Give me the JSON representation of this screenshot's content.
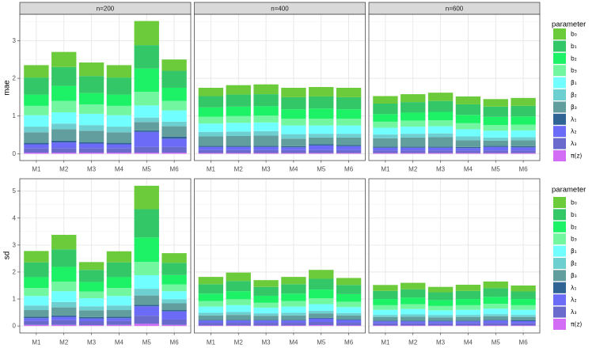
{
  "chart_data": [
    {
      "type": "bar",
      "stacked": true,
      "ylabel": "mae",
      "ylim": [
        -0.18,
        3.7
      ],
      "yticks": [
        0,
        1,
        2,
        3
      ],
      "categories": [
        "M1",
        "M2",
        "M3",
        "M4",
        "M5",
        "M6"
      ],
      "legend": {
        "title": "parameter",
        "position": "right",
        "items": [
          {
            "label": "b₀",
            "color": "#6CCB3A"
          },
          {
            "label": "b₁",
            "color": "#33C768"
          },
          {
            "label": "b₂",
            "color": "#1DF266"
          },
          {
            "label": "b₃",
            "color": "#72F7A0"
          },
          {
            "label": "β₁",
            "color": "#70FEFE"
          },
          {
            "label": "β₂",
            "color": "#6DCFCF"
          },
          {
            "label": "β₃",
            "color": "#639E9E"
          },
          {
            "label": "λ₁",
            "color": "#2F6495"
          },
          {
            "label": "λ₂",
            "color": "#6B6BF7"
          },
          {
            "label": "λ₃",
            "color": "#6A6ACC"
          },
          {
            "label": "π(z)",
            "color": "#D46DF5"
          }
        ]
      },
      "facets": [
        {
          "label": "n=200",
          "values": [
            [
              0.33,
              0.4,
              0.36,
              0.33,
              0.64,
              0.3
            ],
            [
              0.45,
              0.5,
              0.45,
              0.45,
              0.62,
              0.45
            ],
            [
              0.3,
              0.4,
              0.3,
              0.3,
              0.62,
              0.35
            ],
            [
              0.25,
              0.3,
              0.25,
              0.25,
              0.36,
              0.25
            ],
            [
              0.3,
              0.3,
              0.3,
              0.3,
              0.32,
              0.3
            ],
            [
              0.15,
              0.15,
              0.15,
              0.15,
              0.12,
              0.12
            ],
            [
              0.28,
              0.3,
              0.3,
              0.28,
              0.22,
              0.28
            ],
            [
              0.04,
              0.05,
              0.04,
              0.04,
              0.04,
              0.05
            ],
            [
              0.1,
              0.15,
              0.12,
              0.1,
              0.4,
              0.22
            ],
            [
              0.12,
              0.12,
              0.12,
              0.12,
              0.15,
              0.15
            ],
            [
              0.03,
              0.03,
              0.03,
              0.03,
              0.03,
              0.03
            ]
          ]
        },
        {
          "label": "n=400",
          "values": [
            [
              0.22,
              0.25,
              0.26,
              0.25,
              0.25,
              0.25
            ],
            [
              0.3,
              0.32,
              0.32,
              0.32,
              0.32,
              0.32
            ],
            [
              0.25,
              0.25,
              0.25,
              0.25,
              0.27,
              0.25
            ],
            [
              0.18,
              0.18,
              0.18,
              0.18,
              0.18,
              0.18
            ],
            [
              0.22,
              0.23,
              0.23,
              0.23,
              0.22,
              0.22
            ],
            [
              0.12,
              0.12,
              0.12,
              0.12,
              0.1,
              0.1
            ],
            [
              0.25,
              0.26,
              0.27,
              0.2,
              0.18,
              0.2
            ],
            [
              0.03,
              0.03,
              0.03,
              0.03,
              0.03,
              0.03
            ],
            [
              0.08,
              0.08,
              0.08,
              0.07,
              0.12,
              0.1
            ],
            [
              0.08,
              0.08,
              0.08,
              0.08,
              0.08,
              0.08
            ],
            [
              0.02,
              0.02,
              0.02,
              0.02,
              0.02,
              0.02
            ]
          ]
        },
        {
          "label": "n=600",
          "values": [
            [
              0.2,
              0.21,
              0.22,
              0.21,
              0.2,
              0.21
            ],
            [
              0.28,
              0.28,
              0.29,
              0.28,
              0.27,
              0.28
            ],
            [
              0.2,
              0.21,
              0.22,
              0.22,
              0.22,
              0.22
            ],
            [
              0.16,
              0.16,
              0.16,
              0.16,
              0.15,
              0.15
            ],
            [
              0.18,
              0.19,
              0.19,
              0.19,
              0.18,
              0.18
            ],
            [
              0.1,
              0.1,
              0.1,
              0.1,
              0.08,
              0.08
            ],
            [
              0.22,
              0.24,
              0.25,
              0.18,
              0.14,
              0.16
            ],
            [
              0.03,
              0.03,
              0.03,
              0.03,
              0.03,
              0.03
            ],
            [
              0.07,
              0.07,
              0.07,
              0.06,
              0.09,
              0.08
            ],
            [
              0.07,
              0.07,
              0.07,
              0.07,
              0.07,
              0.07
            ],
            [
              0.02,
              0.02,
              0.02,
              0.02,
              0.02,
              0.02
            ]
          ]
        }
      ]
    },
    {
      "type": "bar",
      "stacked": true,
      "ylabel": "sd",
      "ylim": [
        -0.26,
        5.46
      ],
      "yticks": [
        0,
        1,
        2,
        3,
        4,
        5
      ],
      "categories": [
        "M1",
        "M2",
        "M3",
        "M4",
        "M5",
        "M6"
      ],
      "legend": {
        "title": "parameter",
        "position": "right",
        "items": [
          {
            "label": "b₀",
            "color": "#6CCB3A"
          },
          {
            "label": "b₁",
            "color": "#33C768"
          },
          {
            "label": "b₂",
            "color": "#1DF266"
          },
          {
            "label": "b₃",
            "color": "#72F7A0"
          },
          {
            "label": "β₁",
            "color": "#70FEFE"
          },
          {
            "label": "β₂",
            "color": "#6DCFCF"
          },
          {
            "label": "β₃",
            "color": "#639E9E"
          },
          {
            "label": "λ₁",
            "color": "#2F6495"
          },
          {
            "label": "λ₂",
            "color": "#6B6BF7"
          },
          {
            "label": "λ₃",
            "color": "#6A6ACC"
          },
          {
            "label": "π(z)",
            "color": "#D46DF5"
          }
        ]
      },
      "facets": [
        {
          "values": [
            [
              0.42,
              0.54,
              0.29,
              0.41,
              0.87,
              0.36
            ],
            [
              0.55,
              0.65,
              0.45,
              0.55,
              1.05,
              0.45
            ],
            [
              0.4,
              0.55,
              0.35,
              0.4,
              0.9,
              0.35
            ],
            [
              0.3,
              0.35,
              0.25,
              0.3,
              0.5,
              0.25
            ],
            [
              0.35,
              0.4,
              0.3,
              0.35,
              0.5,
              0.3
            ],
            [
              0.17,
              0.2,
              0.15,
              0.17,
              0.25,
              0.15
            ],
            [
              0.25,
              0.3,
              0.25,
              0.25,
              0.35,
              0.25
            ],
            [
              0.05,
              0.05,
              0.05,
              0.05,
              0.05,
              0.05
            ],
            [
              0.1,
              0.12,
              0.1,
              0.1,
              0.35,
              0.3
            ],
            [
              0.15,
              0.18,
              0.15,
              0.15,
              0.3,
              0.2
            ],
            [
              0.04,
              0.04,
              0.03,
              0.04,
              0.08,
              0.04
            ]
          ]
        },
        {
          "values": [
            [
              0.27,
              0.31,
              0.25,
              0.27,
              0.33,
              0.26
            ],
            [
              0.35,
              0.38,
              0.33,
              0.35,
              0.4,
              0.34
            ],
            [
              0.28,
              0.3,
              0.26,
              0.28,
              0.32,
              0.28
            ],
            [
              0.2,
              0.22,
              0.18,
              0.2,
              0.22,
              0.2
            ],
            [
              0.23,
              0.25,
              0.21,
              0.23,
              0.25,
              0.22
            ],
            [
              0.1,
              0.11,
              0.09,
              0.1,
              0.1,
              0.09
            ],
            [
              0.16,
              0.18,
              0.15,
              0.16,
              0.16,
              0.14
            ],
            [
              0.03,
              0.03,
              0.03,
              0.03,
              0.03,
              0.03
            ],
            [
              0.08,
              0.08,
              0.08,
              0.08,
              0.12,
              0.1
            ],
            [
              0.1,
              0.1,
              0.1,
              0.1,
              0.12,
              0.1
            ],
            [
              0.02,
              0.02,
              0.02,
              0.02,
              0.03,
              0.02
            ]
          ]
        },
        {
          "values": [
            [
              0.22,
              0.24,
              0.2,
              0.23,
              0.25,
              0.22
            ],
            [
              0.3,
              0.31,
              0.29,
              0.3,
              0.32,
              0.28
            ],
            [
              0.23,
              0.24,
              0.22,
              0.23,
              0.26,
              0.23
            ],
            [
              0.17,
              0.18,
              0.16,
              0.17,
              0.18,
              0.17
            ],
            [
              0.19,
              0.2,
              0.18,
              0.19,
              0.2,
              0.19
            ],
            [
              0.08,
              0.09,
              0.08,
              0.08,
              0.08,
              0.08
            ],
            [
              0.13,
              0.14,
              0.12,
              0.13,
              0.13,
              0.12
            ],
            [
              0.03,
              0.03,
              0.03,
              0.03,
              0.03,
              0.03
            ],
            [
              0.07,
              0.07,
              0.07,
              0.07,
              0.09,
              0.08
            ],
            [
              0.08,
              0.08,
              0.08,
              0.08,
              0.09,
              0.08
            ],
            [
              0.02,
              0.02,
              0.02,
              0.02,
              0.02,
              0.02
            ]
          ]
        }
      ]
    }
  ]
}
